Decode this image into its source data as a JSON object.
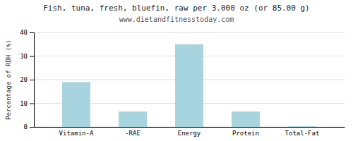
{
  "chart_data": {
    "type": "bar",
    "title": "Fish, tuna, fresh, bluefin, raw per 3.000 oz (or 85.00 g)",
    "subtitle": "www.dietandfitnesstoday.com",
    "categories": [
      "Vitamin-A",
      "-RAE",
      "Energy",
      "Protein",
      "Total-Fat"
    ],
    "values": [
      19,
      6.5,
      35,
      6.5,
      0.3
    ],
    "color": "#a8d4df",
    "ylabel": "Percentage of RDH (%)",
    "ylim": [
      0,
      40
    ],
    "yticks": [
      0,
      10,
      20,
      30,
      40
    ],
    "grid": true
  }
}
